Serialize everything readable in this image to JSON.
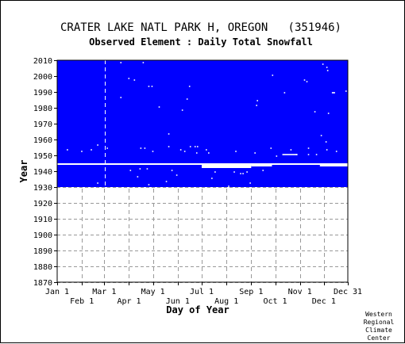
{
  "chart_data": {
    "type": "heatmap",
    "title": "CRATER LAKE NATL PARK H, OREGON   (351946)",
    "subtitle": "Observed Element : Daily Total Snowfall",
    "xlabel": "Day of Year",
    "ylabel": "Year",
    "x_ticks_upper": [
      "Jan 1",
      "Mar 1",
      "May 1",
      "Jul 1",
      "Sep 1",
      "Nov 1",
      "Dec 31"
    ],
    "x_ticks_lower": [
      "Feb 1",
      "Apr 1",
      "Jun 1",
      "Aug 1",
      "Oct 1",
      "Dec 1"
    ],
    "x_tick_days_upper": [
      1,
      60,
      121,
      182,
      244,
      305,
      365
    ],
    "x_tick_days_lower": [
      32,
      91,
      152,
      213,
      274,
      335
    ],
    "y_ticks": [
      "2010",
      "2000",
      "1990",
      "1980",
      "1970",
      "1960",
      "1950",
      "1940",
      "1930",
      "1920",
      "1910",
      "1900",
      "1890",
      "1880",
      "1870"
    ],
    "ylim": [
      1870,
      2010
    ],
    "xlim": [
      1,
      365
    ],
    "grid": true,
    "data_color": "#0000ff",
    "coverage_blocks": [
      {
        "year_from": 1945,
        "year_to": 2010,
        "day_from": 1,
        "day_to": 365
      },
      {
        "year_from": 1930,
        "year_to": 1944,
        "day_from": 1,
        "day_to": 365
      }
    ],
    "gap_segments": [
      {
        "year_from": 1944,
        "year_to": 1945,
        "day_from": 1,
        "day_to": 365
      },
      {
        "year_from": 1942,
        "year_to": 1944,
        "day_from": 182,
        "day_to": 244
      },
      {
        "year_from": 1943,
        "year_to": 1944,
        "day_from": 244,
        "day_to": 270
      },
      {
        "year_from": 1943,
        "year_to": 1944,
        "day_from": 330,
        "day_to": 365
      }
    ],
    "missing_days": [
      {
        "year": 2008,
        "day": 80
      },
      {
        "year": 2008,
        "day": 108
      },
      {
        "year": 2007,
        "day": 333
      },
      {
        "year": 2005,
        "day": 338
      },
      {
        "year": 2003,
        "day": 339
      },
      {
        "year": 2000,
        "day": 270
      },
      {
        "year": 1998,
        "day": 90
      },
      {
        "year": 1997,
        "day": 97
      },
      {
        "year": 1997,
        "day": 310
      },
      {
        "year": 1996,
        "day": 313
      },
      {
        "year": 1993,
        "day": 115
      },
      {
        "year": 1993,
        "day": 119
      },
      {
        "year": 1993,
        "day": 166
      },
      {
        "year": 1990,
        "day": 362
      },
      {
        "year": 1989,
        "day": 285
      },
      {
        "year": 1986,
        "day": 80
      },
      {
        "year": 1985,
        "day": 163
      },
      {
        "year": 1984,
        "day": 251
      },
      {
        "year": 1981,
        "day": 250
      },
      {
        "year": 1980,
        "day": 128
      },
      {
        "year": 1978,
        "day": 157
      },
      {
        "year": 1977,
        "day": 323
      },
      {
        "year": 1976,
        "day": 340
      },
      {
        "year": 1963,
        "day": 140
      },
      {
        "year": 1962,
        "day": 331
      },
      {
        "year": 1958,
        "day": 337
      },
      {
        "year": 1956,
        "day": 51
      },
      {
        "year": 1955,
        "day": 140
      },
      {
        "year": 1955,
        "day": 167
      },
      {
        "year": 1955,
        "day": 173
      },
      {
        "year": 1955,
        "day": 176
      },
      {
        "year": 1954,
        "day": 63
      },
      {
        "year": 1954,
        "day": 105
      },
      {
        "year": 1954,
        "day": 110
      },
      {
        "year": 1954,
        "day": 268
      },
      {
        "year": 1954,
        "day": 315
      },
      {
        "year": 1953,
        "day": 13
      },
      {
        "year": 1953,
        "day": 43
      },
      {
        "year": 1953,
        "day": 155
      },
      {
        "year": 1953,
        "day": 187
      },
      {
        "year": 1953,
        "day": 293
      },
      {
        "year": 1953,
        "day": 338
      },
      {
        "year": 1952,
        "day": 31
      },
      {
        "year": 1952,
        "day": 120
      },
      {
        "year": 1952,
        "day": 160
      },
      {
        "year": 1952,
        "day": 224
      },
      {
        "year": 1952,
        "day": 350
      },
      {
        "year": 1951,
        "day": 175
      },
      {
        "year": 1951,
        "day": 190
      },
      {
        "year": 1951,
        "day": 248
      },
      {
        "year": 1950,
        "day": 300
      },
      {
        "year": 1950,
        "day": 315
      },
      {
        "year": 1950,
        "day": 325
      },
      {
        "year": 1949,
        "day": 275
      },
      {
        "year": 1941,
        "day": 104
      },
      {
        "year": 1941,
        "day": 113
      },
      {
        "year": 1940,
        "day": 92
      },
      {
        "year": 1940,
        "day": 144
      },
      {
        "year": 1940,
        "day": 258
      },
      {
        "year": 1939,
        "day": 198
      },
      {
        "year": 1939,
        "day": 222
      },
      {
        "year": 1939,
        "day": 238
      },
      {
        "year": 1938,
        "day": 230
      },
      {
        "year": 1938,
        "day": 233
      },
      {
        "year": 1937,
        "day": 150
      },
      {
        "year": 1936,
        "day": 101
      },
      {
        "year": 1935,
        "day": 194
      },
      {
        "year": 1933,
        "day": 137
      },
      {
        "year": 1932,
        "day": 51
      },
      {
        "year": 1932,
        "day": 242
      },
      {
        "year": 1931,
        "day": 115
      },
      {
        "year": 1930,
        "day": 215
      }
    ],
    "missing_rows": [
      {
        "year": 1950,
        "day_from": 283,
        "day_to": 302
      },
      {
        "year": 1989,
        "day_from": 345,
        "day_to": 349
      }
    ],
    "white_column_day": 61
  },
  "credit": [
    "Western",
    "Regional",
    "Climate",
    "Center"
  ]
}
